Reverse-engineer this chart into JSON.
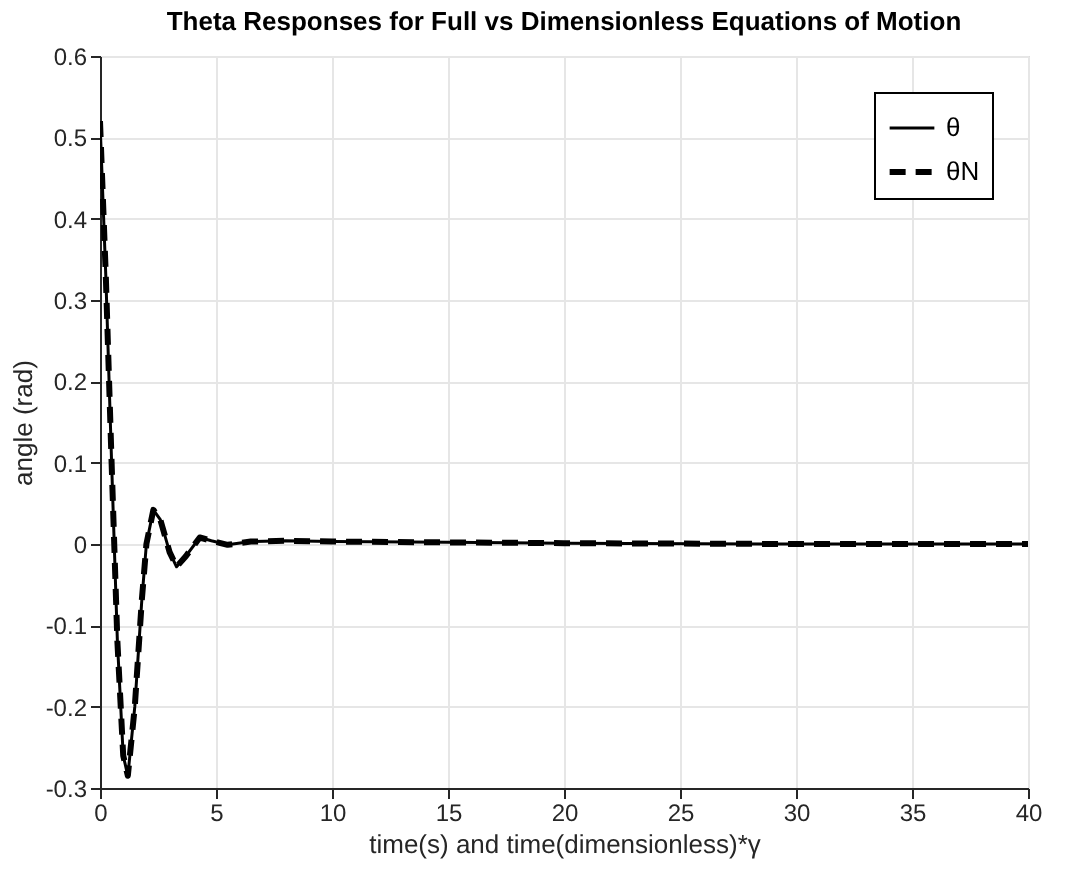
{
  "chart_data": {
    "type": "line",
    "title": "Theta Responses for Full vs Dimensionless Equations of Motion",
    "xlabel": "time(s) and time(dimensionless)*γ",
    "ylabel": "angle (rad)",
    "x": [
      0,
      0.25,
      0.5,
      0.75,
      1.0,
      1.2,
      1.5,
      1.8,
      2.0,
      2.3,
      2.6,
      3.0,
      3.3,
      3.7,
      4.3,
      4.8,
      5.5,
      6.5,
      8,
      10,
      15,
      20,
      30,
      40
    ],
    "series": [
      {
        "name": "θ",
        "color": "#000000",
        "line_style": "solid",
        "values": [
          0.52,
          0.33,
          0.1,
          -0.12,
          -0.26,
          -0.285,
          -0.2,
          -0.07,
          0.0,
          0.042,
          0.03,
          -0.01,
          -0.028,
          -0.015,
          0.008,
          0.004,
          -0.001,
          0.003,
          0.004,
          0.003,
          0.002,
          0.001,
          0,
          0
        ]
      },
      {
        "name": "θN",
        "color": "#000000",
        "line_style": "dashed",
        "values": [
          0.52,
          0.33,
          0.1,
          -0.12,
          -0.26,
          -0.285,
          -0.2,
          -0.07,
          0.0,
          0.042,
          0.03,
          -0.01,
          -0.028,
          -0.015,
          0.008,
          0.004,
          -0.001,
          0.003,
          0.004,
          0.003,
          0.002,
          0.001,
          0,
          0
        ]
      }
    ],
    "xlim": [
      0,
      40
    ],
    "xticks": [
      0,
      5,
      10,
      15,
      20,
      25,
      30,
      35,
      40
    ],
    "ylim": [
      -0.3,
      0.6
    ],
    "yticks": [
      -0.3,
      -0.2,
      -0.1,
      {
        "value": 0,
        "label": "0"
      },
      0.1,
      0.2,
      0.3,
      0.4,
      0.5,
      0.6
    ],
    "grid": true,
    "legend": "top right",
    "marker": "none"
  }
}
